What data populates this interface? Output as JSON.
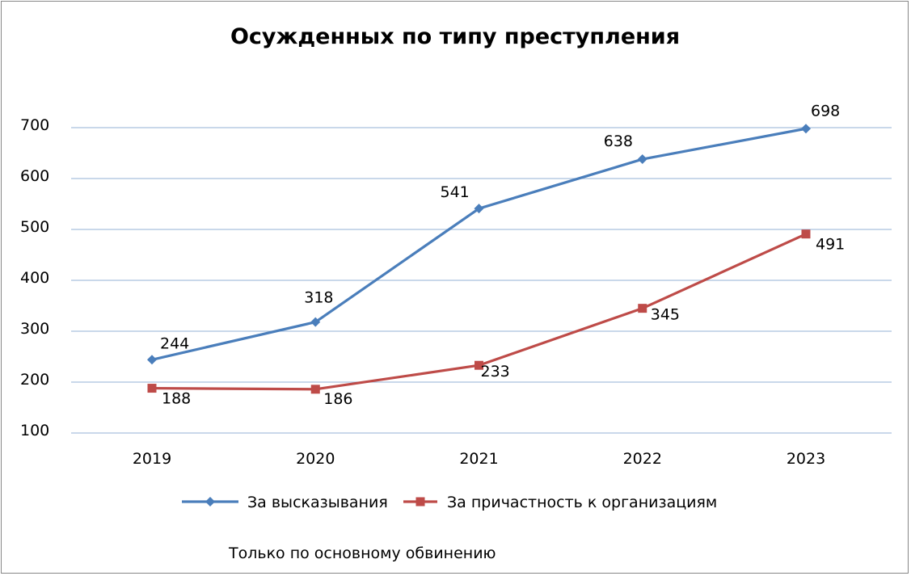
{
  "chart_data": {
    "type": "line",
    "title": "Осужденных по типу преступления",
    "xlabel": "",
    "ylabel": "",
    "categories": [
      "2019",
      "2020",
      "2021",
      "2022",
      "2023"
    ],
    "ylim": [
      100,
      700
    ],
    "yticks": [
      "100",
      "200",
      "300",
      "400",
      "500",
      "600",
      "700"
    ],
    "grid": true,
    "legend_position": "bottom",
    "series": [
      {
        "name": "За высказывания",
        "values": [
          244,
          318,
          541,
          638,
          698
        ],
        "color": "#4a7ebb",
        "marker": "diamond"
      },
      {
        "name": "За причастность к организациям",
        "values": [
          188,
          186,
          233,
          345,
          491
        ],
        "color": "#be4b48",
        "marker": "square"
      }
    ],
    "note": "Только по основному обвинению"
  }
}
